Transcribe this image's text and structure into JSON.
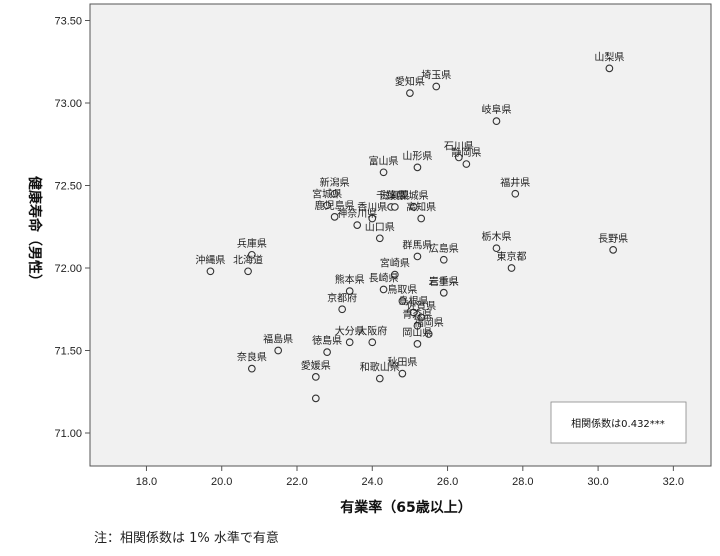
{
  "chart_data": {
    "type": "scatter",
    "title": "",
    "xlabel": "有業率（65歳以上）",
    "ylabel": "健康寿命（男性）",
    "xlim": [
      16.5,
      33.0
    ],
    "ylim": [
      70.8,
      73.6
    ],
    "x_ticks": [
      "18.0",
      "20.0",
      "22.0",
      "24.0",
      "26.0",
      "28.0",
      "30.0",
      "32.0"
    ],
    "y_ticks": [
      "71.00",
      "71.50",
      "72.00",
      "72.50",
      "73.00",
      "73.50"
    ],
    "grid": false,
    "legend": "none",
    "annotation": "相関係数は0.432***",
    "points": [
      {
        "label": "山梨県",
        "x": 30.3,
        "y": 73.21
      },
      {
        "label": "愛知県",
        "x": 25.0,
        "y": 73.06
      },
      {
        "label": "埼玉県",
        "x": 25.7,
        "y": 73.1
      },
      {
        "label": "岐阜県",
        "x": 27.3,
        "y": 72.89
      },
      {
        "label": "石川県",
        "x": 26.3,
        "y": 72.67
      },
      {
        "label": "山形県",
        "x": 25.2,
        "y": 72.61
      },
      {
        "label": "富山県",
        "x": 24.3,
        "y": 72.58
      },
      {
        "label": "静岡県",
        "x": 26.5,
        "y": 72.63
      },
      {
        "label": "新潟県",
        "x": 23.0,
        "y": 72.45
      },
      {
        "label": "福井県",
        "x": 27.8,
        "y": 72.45
      },
      {
        "label": "宮城県",
        "x": 22.8,
        "y": 72.38
      },
      {
        "label": "千葉県",
        "x": 24.5,
        "y": 72.37
      },
      {
        "label": "茨城県",
        "x": 25.1,
        "y": 72.37
      },
      {
        "label": "滋賀県",
        "x": 24.6,
        "y": 72.37
      },
      {
        "label": "鹿児島県",
        "x": 23.0,
        "y": 72.31
      },
      {
        "label": "香川県",
        "x": 24.0,
        "y": 72.3
      },
      {
        "label": "高知県",
        "x": 25.3,
        "y": 72.3
      },
      {
        "label": "神奈川県",
        "x": 23.6,
        "y": 72.26
      },
      {
        "label": "兵庫県",
        "x": 20.8,
        "y": 72.08
      },
      {
        "label": "山口県",
        "x": 24.2,
        "y": 72.18
      },
      {
        "label": "栃木県",
        "x": 27.3,
        "y": 72.12
      },
      {
        "label": "長野県",
        "x": 30.4,
        "y": 72.11
      },
      {
        "label": "群馬県",
        "x": 25.2,
        "y": 72.07
      },
      {
        "label": "沖縄県",
        "x": 19.7,
        "y": 71.98
      },
      {
        "label": "広島県",
        "x": 25.9,
        "y": 72.05
      },
      {
        "label": "東京都",
        "x": 27.7,
        "y": 72.0
      },
      {
        "label": "北海道",
        "x": 20.7,
        "y": 71.98
      },
      {
        "label": "宮崎県",
        "x": 24.6,
        "y": 71.96
      },
      {
        "label": "岩手県",
        "x": 25.9,
        "y": 71.85
      },
      {
        "label": "長崎県",
        "x": 24.3,
        "y": 71.87
      },
      {
        "label": "三重県",
        "x": 25.9,
        "y": 71.85
      },
      {
        "label": "熊本県",
        "x": 23.4,
        "y": 71.86
      },
      {
        "label": "鳥取県",
        "x": 24.8,
        "y": 71.8
      },
      {
        "label": "京都府",
        "x": 23.2,
        "y": 71.75
      },
      {
        "label": "島根県",
        "x": 25.1,
        "y": 71.73
      },
      {
        "label": "佐賀県",
        "x": 25.3,
        "y": 71.7
      },
      {
        "label": "青森県",
        "x": 25.2,
        "y": 71.65
      },
      {
        "label": "大分県",
        "x": 23.4,
        "y": 71.55
      },
      {
        "label": "大阪府",
        "x": 24.0,
        "y": 71.55
      },
      {
        "label": "福岡県",
        "x": 25.5,
        "y": 71.6
      },
      {
        "label": "岡山県",
        "x": 25.2,
        "y": 71.54
      },
      {
        "label": "福島県",
        "x": 21.5,
        "y": 71.5
      },
      {
        "label": "徳島県",
        "x": 22.8,
        "y": 71.49
      },
      {
        "label": "奈良県",
        "x": 20.8,
        "y": 71.39
      },
      {
        "label": "愛媛県",
        "x": 22.5,
        "y": 71.34
      },
      {
        "label": "和歌山県",
        "x": 24.2,
        "y": 71.33
      },
      {
        "label": "秋田県",
        "x": 24.8,
        "y": 71.36
      },
      {
        "label": "",
        "x": 22.5,
        "y": 71.21
      }
    ]
  },
  "note": "注：相関係数は 1% 水準で有意"
}
